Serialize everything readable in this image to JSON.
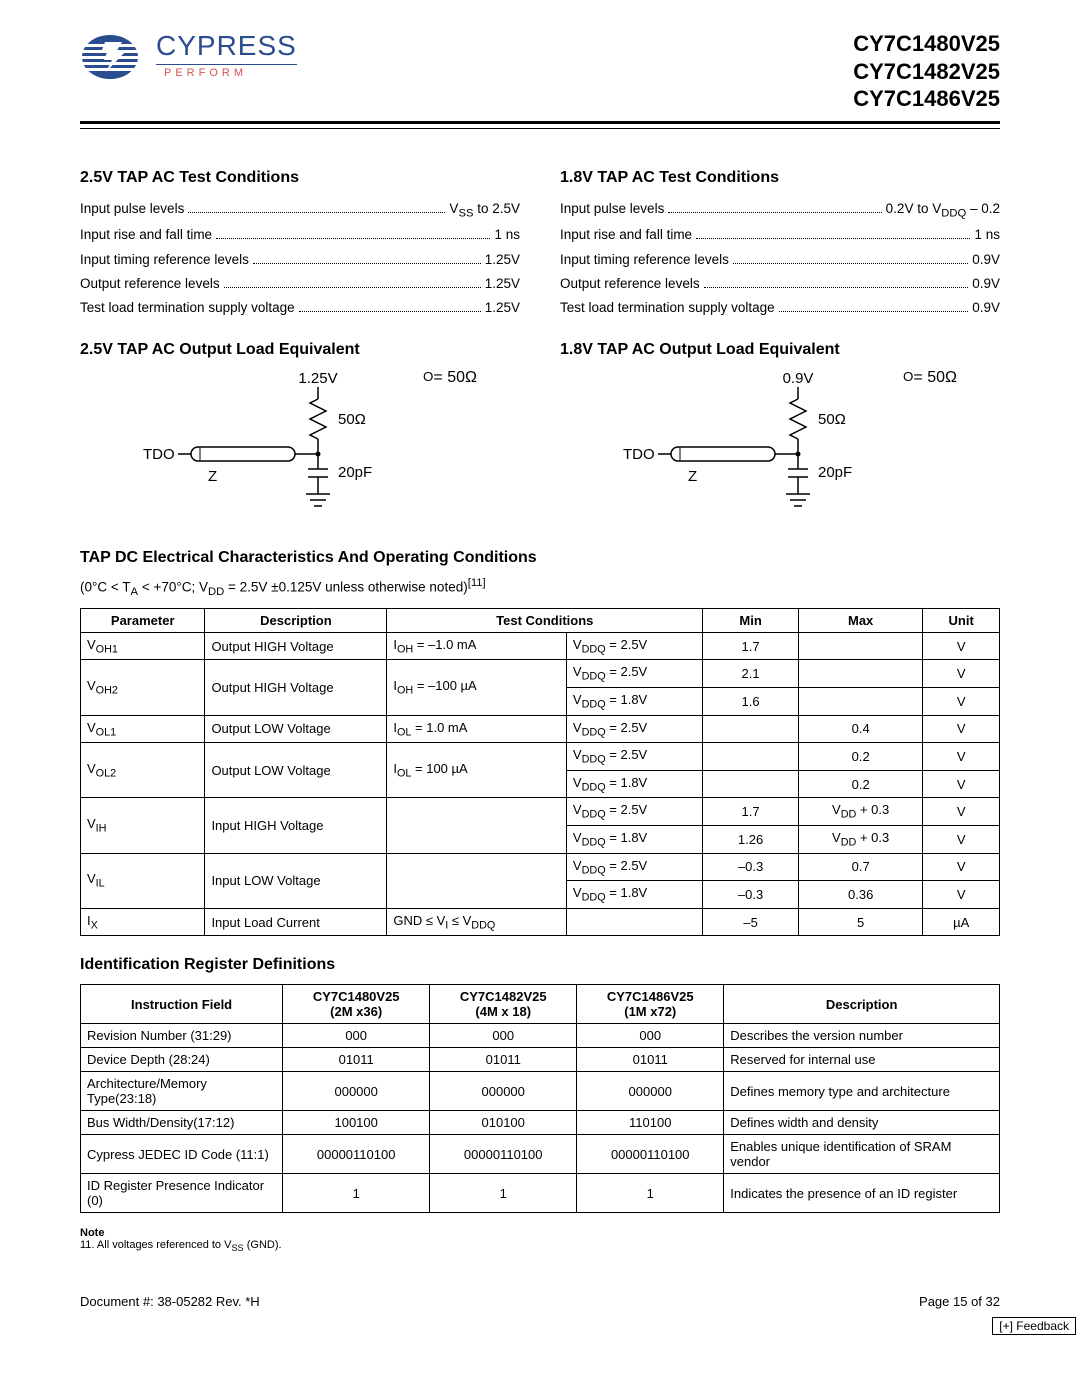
{
  "header": {
    "brand": "CYPRESS",
    "tagline": "PERFORM",
    "parts": [
      "CY7C1480V25",
      "CY7C1482V25",
      "CY7C1486V25"
    ]
  },
  "sec25": {
    "title": "2.5V TAP AC Test Conditions",
    "rows": [
      {
        "label": "Input pulse levels",
        "value": "V<sub>SS</sub> to 2.5V"
      },
      {
        "label": "Input rise and fall time",
        "value": "1 ns"
      },
      {
        "label": "Input timing reference levels",
        "value": "1.25V"
      },
      {
        "label": "Output reference levels",
        "value": "1.25V"
      },
      {
        "label": "Test load termination supply voltage",
        "value": "1.25V"
      }
    ],
    "load_title": "2.5V TAP AC Output Load Equivalent",
    "circuit": {
      "v": "1.25V",
      "r": "50Ω",
      "z": "Z<sub>O</sub>= 50Ω",
      "c": "20pF",
      "sig": "TDO"
    }
  },
  "sec18": {
    "title": "1.8V TAP AC Test Conditions",
    "rows": [
      {
        "label": "Input pulse levels",
        "value": "0.2V to V<sub>DDQ</sub> – 0.2"
      },
      {
        "label": "Input rise and fall time",
        "value": "1 ns"
      },
      {
        "label": "Input timing reference levels",
        "value": "0.9V"
      },
      {
        "label": "Output reference levels",
        "value": "0.9V"
      },
      {
        "label": "Test load termination supply voltage",
        "value": "0.9V"
      }
    ],
    "load_title": "1.8V TAP AC Output Load Equivalent",
    "circuit": {
      "v": "0.9V",
      "r": "50Ω",
      "z": "Z<sub>O</sub>= 50Ω",
      "c": "20pF",
      "sig": "TDO"
    }
  },
  "dc": {
    "title": "TAP DC Electrical Characteristics And Operating Conditions",
    "cond": "(0°C < T<sub>A</sub> < +70°C; V<sub>DD</sub> = 2.5V ±0.125V unless otherwise noted)<sup>[11]</sup>",
    "columns": [
      "Parameter",
      "Description",
      "Test Conditions",
      "",
      "Min",
      "Max",
      "Unit"
    ],
    "rows": [
      {
        "param": "V<sub>OH1</sub>",
        "desc": "Output HIGH Voltage",
        "tc1": "I<sub>OH</sub> = –1.0 mA",
        "tc2": "V<sub>DDQ</sub> = 2.5V",
        "min": "1.7",
        "max": "",
        "unit": "V"
      },
      {
        "param": "V<sub>OH2</sub>",
        "desc": "Output HIGH Voltage",
        "tc1": "I<sub>OH</sub> = –100 µA",
        "tc2": "V<sub>DDQ</sub> = 2.5V",
        "min": "2.1",
        "max": "",
        "unit": "V"
      },
      {
        "param": "",
        "desc": "",
        "tc1": "",
        "tc2": "V<sub>DDQ</sub> = 1.8V",
        "min": "1.6",
        "max": "",
        "unit": "V"
      },
      {
        "param": "V<sub>OL1</sub>",
        "desc": "Output LOW Voltage",
        "tc1": "I<sub>OL</sub> = 1.0 mA",
        "tc2": "V<sub>DDQ</sub> = 2.5V",
        "min": "",
        "max": "0.4",
        "unit": "V"
      },
      {
        "param": "V<sub>OL2</sub>",
        "desc": "Output LOW Voltage",
        "tc1": "I<sub>OL</sub> = 100 µA",
        "tc2": "V<sub>DDQ</sub> = 2.5V",
        "min": "",
        "max": "0.2",
        "unit": "V"
      },
      {
        "param": "",
        "desc": "",
        "tc1": "",
        "tc2": "V<sub>DDQ</sub> = 1.8V",
        "min": "",
        "max": "0.2",
        "unit": "V"
      },
      {
        "param": "V<sub>IH</sub>",
        "desc": "Input HIGH Voltage",
        "tc1": "",
        "tc2": "V<sub>DDQ</sub> = 2.5V",
        "min": "1.7",
        "max": "V<sub>DD</sub> + 0.3",
        "unit": "V"
      },
      {
        "param": "",
        "desc": "",
        "tc1": "",
        "tc2": "V<sub>DDQ</sub> = 1.8V",
        "min": "1.26",
        "max": "V<sub>DD</sub> + 0.3",
        "unit": "V"
      },
      {
        "param": "V<sub>IL</sub>",
        "desc": "Input LOW Voltage",
        "tc1": "",
        "tc2": "V<sub>DDQ</sub> = 2.5V",
        "min": "–0.3",
        "max": "0.7",
        "unit": "V"
      },
      {
        "param": "",
        "desc": "",
        "tc1": "",
        "tc2": "V<sub>DDQ</sub> = 1.8V",
        "min": "–0.3",
        "max": "0.36",
        "unit": "V"
      },
      {
        "param": "I<sub>X</sub>",
        "desc": "Input Load Current",
        "tc1": "GND ≤ V<sub>I</sub> ≤ V<sub>DDQ</sub>",
        "tc2": "",
        "min": "–5",
        "max": "5",
        "unit": "µA"
      }
    ]
  },
  "idreg": {
    "title": "Identification Register Definitions",
    "columns": [
      "Instruction Field",
      "CY7C1480V25\n(2M x36)",
      "CY7C1482V25\n(4M x 18)",
      "CY7C1486V25\n(1M x72)",
      "Description"
    ],
    "rows": [
      {
        "f": "Revision Number (31:29)",
        "a": "000",
        "b": "000",
        "c": "000",
        "d": "Describes the version number"
      },
      {
        "f": "Device Depth (28:24)",
        "a": "01011",
        "b": "01011",
        "c": "01011",
        "d": "Reserved for internal use"
      },
      {
        "f": "Architecture/Memory Type(23:18)",
        "a": "000000",
        "b": "000000",
        "c": "000000",
        "d": "Defines memory type and architecture"
      },
      {
        "f": "Bus Width/Density(17:12)",
        "a": "100100",
        "b": "010100",
        "c": "110100",
        "d": "Defines width and density"
      },
      {
        "f": "Cypress JEDEC ID Code (11:1)",
        "a": "00000110100",
        "b": "00000110100",
        "c": "00000110100",
        "d": "Enables unique identification of SRAM vendor"
      },
      {
        "f": "ID Register Presence Indicator (0)",
        "a": "1",
        "b": "1",
        "c": "1",
        "d": "Indicates the presence of an ID register"
      }
    ]
  },
  "note": {
    "title": "Note",
    "text": "11. All voltages referenced to V<sub>SS</sub> (GND)."
  },
  "footer": {
    "doc": "Document #: 38-05282 Rev. *H",
    "page": "Page 15 of 32"
  },
  "feedback": "[+] Feedback"
}
